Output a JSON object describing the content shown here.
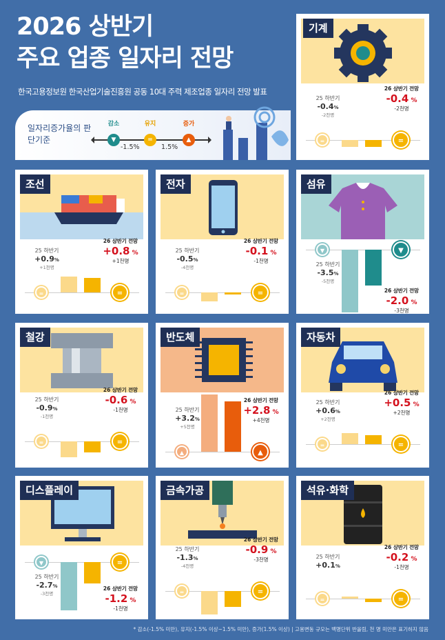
{
  "header": {
    "title_line1": "2026 상반기",
    "title_line2": "주요 업종 일자리 전망",
    "subtitle": "한국고용정보원 한국산업기술진흥원 공동 10대 주력 제조업종 일자리 전망 발표"
  },
  "criteria": {
    "label": "일자리증가율의 판단기준",
    "decrease": "감소",
    "maintain": "유지",
    "increase": "증가",
    "low": "-1.5%",
    "high": "1.5%"
  },
  "colors": {
    "decrease": "#1f8c8c",
    "maintain": "#f5b400",
    "increase": "#e85d0c",
    "down_light": "#8fc7c9",
    "keep_light": "#fbd98a",
    "up_light": "#f4ad7e",
    "pct_red": "#d4121e",
    "background": "#416ea8"
  },
  "labels": {
    "prev": "25 하반기",
    "next": "26 상반기 전망"
  },
  "industries": [
    {
      "name": "기계",
      "icon": "gear-icon",
      "prev_pct": "-0.4",
      "prev_count": "-2천명",
      "next_pct": "-0.4",
      "next_count": "-2천명",
      "prev_val": -0.4,
      "next_val": -0.4,
      "prev_status": "maintain",
      "next_status": "maintain"
    },
    {
      "name": "조선",
      "icon": "ship-icon",
      "prev_pct": "+0.9",
      "prev_count": "+1천명",
      "next_pct": "+0.8",
      "next_count": "+1천명",
      "prev_val": 0.9,
      "next_val": 0.8,
      "prev_status": "maintain",
      "next_status": "maintain"
    },
    {
      "name": "전자",
      "icon": "smartphone-icon",
      "prev_pct": "-0.5",
      "prev_count": "-4천명",
      "next_pct": "-0.1",
      "next_count": "-1천명",
      "prev_val": -0.5,
      "next_val": -0.1,
      "prev_status": "maintain",
      "next_status": "maintain"
    },
    {
      "name": "섬유",
      "icon": "shirt-icon",
      "prev_pct": "-3.5",
      "prev_count": "-5천명",
      "next_pct": "-2.0",
      "next_count": "-3천명",
      "prev_val": -3.5,
      "next_val": -2.0,
      "prev_status": "decrease",
      "next_status": "decrease"
    },
    {
      "name": "철강",
      "icon": "steel-coil-icon",
      "prev_pct": "-0.9",
      "prev_count": "-1천명",
      "next_pct": "-0.6",
      "next_count": "-1천명",
      "prev_val": -0.9,
      "next_val": -0.6,
      "prev_status": "maintain",
      "next_status": "maintain"
    },
    {
      "name": "반도체",
      "icon": "chip-icon",
      "prev_pct": "+3.2",
      "prev_count": "+5천명",
      "next_pct": "+2.8",
      "next_count": "+4천명",
      "prev_val": 3.2,
      "next_val": 2.8,
      "prev_status": "increase",
      "next_status": "increase"
    },
    {
      "name": "자동차",
      "icon": "car-icon",
      "prev_pct": "+0.6",
      "prev_count": "+2천명",
      "next_pct": "+0.5",
      "next_count": "+2천명",
      "prev_val": 0.6,
      "next_val": 0.5,
      "prev_status": "maintain",
      "next_status": "maintain"
    },
    {
      "name": "디스플레이",
      "icon": "monitor-icon",
      "prev_pct": "-2.7",
      "prev_count": "-3천명",
      "next_pct": "-1.2",
      "next_count": "-1천명",
      "prev_val": -2.7,
      "next_val": -1.2,
      "prev_status": "decrease",
      "next_status": "maintain"
    },
    {
      "name": "금속가공",
      "icon": "machining-icon",
      "prev_pct": "-1.3",
      "prev_count": "-4천명",
      "next_pct": "-0.9",
      "next_count": "-3천명",
      "prev_val": -1.3,
      "next_val": -0.9,
      "prev_status": "maintain",
      "next_status": "maintain"
    },
    {
      "name": "석유·화학",
      "icon": "oil-barrel-icon",
      "prev_pct": "+0.1",
      "prev_count": "",
      "next_pct": "-0.2",
      "next_count": "-1천명",
      "prev_val": 0.1,
      "next_val": -0.2,
      "prev_status": "maintain",
      "next_status": "maintain"
    }
  ],
  "footnote": "* 감소(-1.5% 미만), 유지(-1.5% 이상~1.5% 미만), 증가(1.5% 이상)  |  고용변동 규모는 백명단위 반올림, 천 명 미만은 표기하지 않음"
}
